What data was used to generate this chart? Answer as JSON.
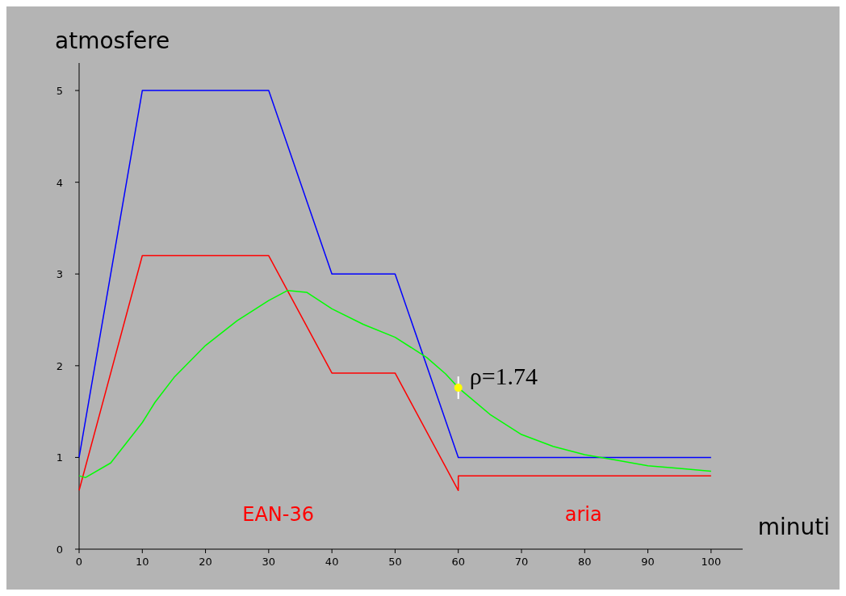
{
  "chart_data": {
    "type": "line",
    "ylabel": "atmosfere",
    "xlabel": "minuti",
    "xlim": [
      0,
      105
    ],
    "ylim": [
      0,
      5.3
    ],
    "xticks": [
      0,
      10,
      20,
      30,
      40,
      50,
      60,
      70,
      80,
      90,
      100
    ],
    "yticks": [
      0,
      1,
      2,
      3,
      4,
      5
    ],
    "grid": false,
    "marker": "none",
    "line_style": "solid",
    "series": [
      {
        "color": "#0000ff",
        "x": [
          0,
          10,
          30,
          40,
          50,
          60,
          100
        ],
        "values": [
          1,
          5,
          5,
          3,
          3,
          1,
          1
        ]
      },
      {
        "color": "#ff0000",
        "x": [
          0,
          10,
          30,
          40,
          50,
          60,
          60,
          100
        ],
        "values": [
          0.64,
          3.2,
          3.2,
          1.92,
          1.92,
          0.64,
          0.8,
          0.8
        ]
      },
      {
        "color": "#00ff00",
        "x": [
          0,
          1,
          5,
          10,
          12,
          15,
          20,
          25,
          30,
          33,
          36,
          40,
          45,
          50,
          55,
          58,
          60,
          65,
          70,
          75,
          80,
          85,
          90,
          95,
          100
        ],
        "values": [
          0.8,
          0.78,
          0.94,
          1.38,
          1.6,
          1.87,
          2.22,
          2.49,
          2.71,
          2.82,
          2.8,
          2.62,
          2.45,
          2.31,
          2.09,
          1.91,
          1.76,
          1.47,
          1.25,
          1.12,
          1.03,
          0.97,
          0.91,
          0.88,
          0.85
        ]
      }
    ],
    "annotations": [
      {
        "text": "ρ=1.74",
        "x": 60,
        "y": 1.76
      },
      "EAN-36",
      "aria"
    ]
  }
}
